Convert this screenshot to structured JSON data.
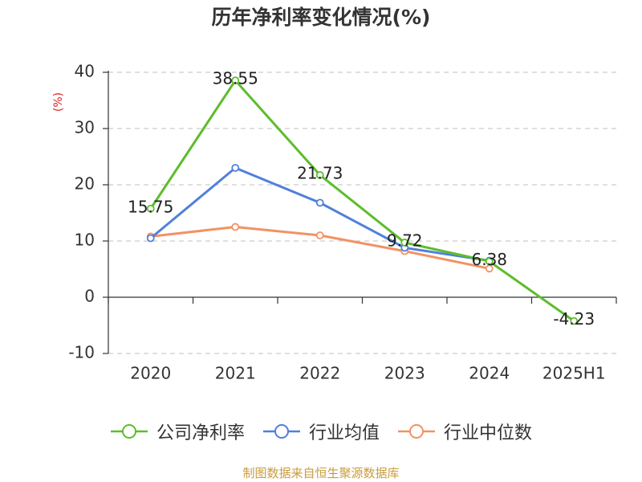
{
  "chart_data": {
    "type": "line",
    "title": "历年净利率变化情况(%)",
    "xlabel": "",
    "ylabel": "(%)",
    "ylabel_color": "#e02020",
    "categories": [
      "2020",
      "2021",
      "2022",
      "2023",
      "2024",
      "2025H1"
    ],
    "ylim": [
      -10,
      40
    ],
    "yticks": [
      40,
      30,
      20,
      10,
      0,
      -10
    ],
    "grid": true,
    "legend_position": "bottom",
    "series": [
      {
        "name": "公司净利率",
        "color": "#5dbd2c",
        "show_data_labels": true,
        "values": [
          15.75,
          38.55,
          21.73,
          9.72,
          6.38,
          -4.23
        ]
      },
      {
        "name": "行业均值",
        "color": "#4f80dc",
        "show_data_labels": false,
        "values": [
          10.5,
          23.0,
          16.8,
          8.8,
          6.5,
          null
        ]
      },
      {
        "name": "行业中位数",
        "color": "#f29263",
        "show_data_labels": false,
        "values": [
          10.8,
          12.5,
          11.0,
          8.2,
          5.1,
          null
        ]
      }
    ]
  },
  "footer": {
    "text": "制图数据来自恒生聚源数据库",
    "color": "#c99c3c"
  }
}
